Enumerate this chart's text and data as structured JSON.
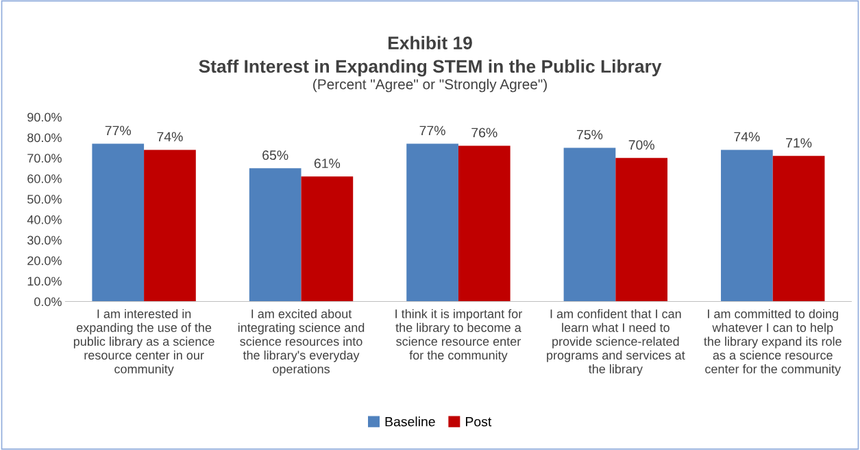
{
  "chart_data": {
    "type": "bar",
    "title": "Exhibit 19\nStaff Interest in Expanding STEM in the Public Library",
    "subtitle": "(Percent \"Agree\" or \"Strongly Agree\")",
    "categories": [
      "I am interested in\nexpanding the use of the\npublic library as a science\nresource center in our\ncommunity",
      "I am excited about\nintegrating science and\nscience resources into\nthe library's everyday\noperations",
      "I think it is important for\nthe library to become a\nscience resource enter\nfor the community",
      "I am confident that I can\nlearn what I need to\nprovide science-related\nprograms and services at\nthe library",
      "I am committed to doing\nwhatever I can to help\nthe library expand its role\nas a science resource\ncenter for the community"
    ],
    "series": [
      {
        "name": "Baseline",
        "color": "#4f81bd",
        "values": [
          77,
          65,
          77,
          75,
          74
        ],
        "value_labels": [
          "77%",
          "65%",
          "77%",
          "75%",
          "74%"
        ]
      },
      {
        "name": "Post",
        "color": "#c00000",
        "values": [
          74,
          61,
          76,
          70,
          71
        ],
        "value_labels": [
          "74%",
          "61%",
          "76%",
          "70%",
          "71%"
        ]
      }
    ],
    "ylim": [
      0,
      90
    ],
    "yticks": [
      {
        "value": 0,
        "label": "0.0%"
      },
      {
        "value": 10,
        "label": "10.0%"
      },
      {
        "value": 20,
        "label": "20.0%"
      },
      {
        "value": 30,
        "label": "30.0%"
      },
      {
        "value": 40,
        "label": "40.0%"
      },
      {
        "value": 50,
        "label": "50.0%"
      },
      {
        "value": 60,
        "label": "60.0%"
      },
      {
        "value": 70,
        "label": "70.0%"
      },
      {
        "value": 80,
        "label": "80.0%"
      },
      {
        "value": 90,
        "label": "90.0%"
      }
    ],
    "legend": "bottom"
  }
}
